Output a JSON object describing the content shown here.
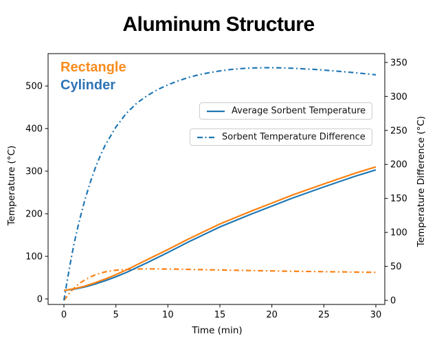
{
  "title": "Aluminum Structure",
  "annotations": {
    "rectangle": "Rectangle",
    "cylinder": "Cylinder"
  },
  "legend": {
    "avg": "Average Sorbent Temperature",
    "diff": "Sorbent Temperature Difference"
  },
  "colors": {
    "blue": "#1f77b4",
    "orange": "#ff7f0e",
    "rect_label": "#f88c1e",
    "cyl_label": "#2e74b6",
    "spine": "#000000",
    "tick_text": "#000000"
  },
  "chart_data": {
    "type": "line",
    "title": "Aluminum Structure",
    "xlabel": "Time (min)",
    "ylabel_left": "Temperature (°C)",
    "ylabel_right": "Temperature Difference (°C)",
    "x_ticks": [
      0,
      5,
      10,
      15,
      20,
      25,
      30
    ],
    "y_left_ticks": [
      0,
      100,
      200,
      300,
      400,
      500
    ],
    "y_right_ticks": [
      0,
      50,
      100,
      150,
      200,
      250,
      300,
      350
    ],
    "x_range": [
      -1.52,
      30.86
    ],
    "y_left_range": [
      -13,
      576
    ],
    "y_right_range": [
      -6,
      363
    ],
    "grid": false,
    "series": [
      {
        "name": "Rectangle - Sorbent Temperature Difference",
        "axis": "right",
        "style": "dashdot",
        "color_key": "orange",
        "x": [
          0,
          0.25,
          0.5,
          0.75,
          1,
          1.5,
          2,
          2.5,
          3,
          3.5,
          4,
          5,
          6,
          7,
          8,
          9,
          10,
          11,
          12,
          13,
          14,
          15,
          16,
          17,
          18,
          19,
          20,
          21,
          22,
          23,
          24,
          25,
          26,
          27,
          28,
          29,
          30
        ],
        "y": [
          0,
          5,
          10,
          14.5,
          18.5,
          25,
          30,
          34,
          37.5,
          40,
          42,
          44.3,
          45.5,
          46.1,
          46.3,
          46.3,
          46.1,
          45.9,
          45.6,
          45.3,
          45,
          44.7,
          44.4,
          44.1,
          43.8,
          43.5,
          43.3,
          43,
          42.8,
          42.6,
          42.4,
          42.2,
          42,
          41.8,
          41.6,
          41.4,
          41.2
        ]
      },
      {
        "name": "Cylinder - Sorbent Temperature Difference",
        "axis": "right",
        "style": "dashdot",
        "color_key": "blue",
        "x": [
          0,
          0.25,
          0.5,
          0.75,
          1,
          1.5,
          2,
          2.5,
          3,
          3.5,
          4,
          5,
          6,
          7,
          8,
          9,
          10,
          11,
          12,
          13,
          14,
          15,
          16,
          17,
          18,
          19,
          20,
          21,
          22,
          23,
          24,
          25,
          26,
          27,
          28,
          29,
          30
        ],
        "y": [
          0,
          23,
          45,
          66,
          85,
          118,
          147,
          172,
          194,
          213,
          229,
          255,
          275,
          290,
          301,
          310,
          317,
          323,
          328,
          332,
          335,
          337.5,
          339.5,
          341,
          341.8,
          342.2,
          342.3,
          342,
          341.5,
          340.7,
          339.8,
          338.7,
          337.5,
          336.2,
          334.9,
          333.4,
          331.8
        ]
      },
      {
        "name": "Cylinder - Average Sorbent Temperature",
        "axis": "left",
        "style": "solid",
        "color_key": "blue",
        "x": [
          0,
          1,
          2,
          3,
          4,
          5,
          6,
          8,
          10,
          12,
          15,
          18,
          20,
          22,
          25,
          28,
          30
        ],
        "y": [
          20,
          23,
          28,
          35,
          43,
          52,
          62,
          85,
          109,
          134,
          169,
          199,
          218,
          237,
          263,
          288,
          303
        ]
      },
      {
        "name": "Rectangle - Average Sorbent Temperature",
        "axis": "left",
        "style": "solid",
        "color_key": "orange",
        "x": [
          0,
          1,
          2,
          3,
          4,
          5,
          6,
          8,
          10,
          12,
          15,
          18,
          20,
          22,
          25,
          28,
          30
        ],
        "y": [
          20,
          24,
          30,
          38,
          47,
          57,
          68,
          92,
          116,
          141,
          176,
          206,
          225,
          244,
          270,
          295,
          310
        ]
      }
    ]
  }
}
